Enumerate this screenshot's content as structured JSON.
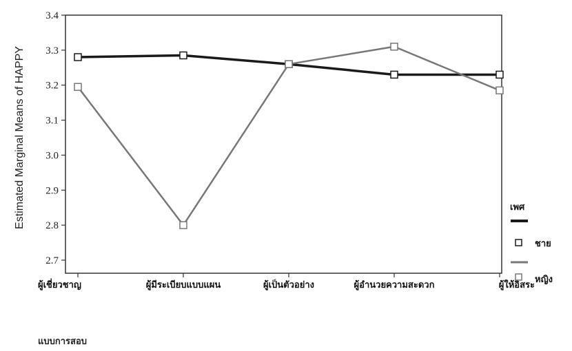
{
  "chart_data": {
    "type": "line",
    "ylabel": "Estimated Marginal Means of HAPPY",
    "xlabel": "แบบการสอบ",
    "ylim": [
      2.7,
      3.4
    ],
    "yticks": [
      "2.7",
      "2.8",
      "2.9",
      "3.0",
      "3.1",
      "3.2",
      "3.3",
      "3.4"
    ],
    "categories": [
      "ผู้เชี่ยวชาญ",
      "ผู้มีระเบียบแบบแผน",
      "ผู้เป็นตัวอย่าง",
      "ผู้อำนวยความสะดวก",
      "ผู้ให้อิสระ"
    ],
    "legend_title": "เพศ",
    "legend_position": "right",
    "grid": false,
    "series": [
      {
        "name": "ชาย",
        "color": "#1a1a1a",
        "values": [
          3.28,
          3.285,
          3.26,
          3.23,
          3.23
        ]
      },
      {
        "name": "หญิง",
        "color": "#777777",
        "values": [
          3.195,
          2.8,
          3.26,
          3.31,
          3.185
        ]
      }
    ]
  }
}
